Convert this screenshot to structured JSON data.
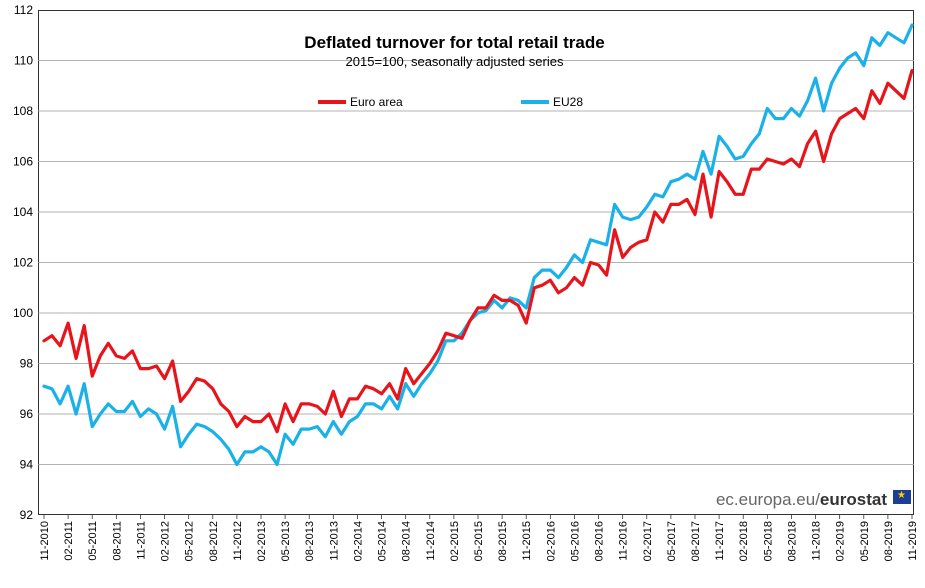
{
  "chart_data": {
    "type": "line",
    "title": "Deflated turnover for total retail trade",
    "subtitle": "2015=100, seasonally adjusted series",
    "ylim": [
      92,
      112
    ],
    "yticks": [
      92,
      94,
      96,
      98,
      100,
      102,
      104,
      106,
      108,
      110,
      112
    ],
    "xtick_labels": [
      "11-2010",
      "02-2011",
      "05-2011",
      "08-2011",
      "11-2011",
      "02-2012",
      "05-2012",
      "08-2012",
      "11-2012",
      "02-2013",
      "05-2013",
      "08-2013",
      "11-2013",
      "02-2014",
      "05-2014",
      "08-2014",
      "11-2014",
      "02-2015",
      "05-2015",
      "08-2015",
      "11-2015",
      "02-2016",
      "05-2016",
      "08-2016",
      "11-2016",
      "02-2017",
      "05-2017",
      "08-2017",
      "11-2017",
      "02-2018",
      "05-2018",
      "08-2018",
      "11-2018",
      "02-2019",
      "05-2019",
      "08-2019",
      "11-2019"
    ],
    "grid": true,
    "legend_position": "top",
    "series": [
      {
        "name": "Euro area",
        "color": "#e8141b",
        "values": [
          98.9,
          99.1,
          98.7,
          99.6,
          98.2,
          99.5,
          97.5,
          98.3,
          98.8,
          98.3,
          98.2,
          98.5,
          97.8,
          97.8,
          97.9,
          97.4,
          98.1,
          96.5,
          96.9,
          97.4,
          97.3,
          97.0,
          96.4,
          96.1,
          95.5,
          95.9,
          95.7,
          95.7,
          96.0,
          95.3,
          96.4,
          95.7,
          96.4,
          96.4,
          96.3,
          96.0,
          96.9,
          95.9,
          96.6,
          96.6,
          97.1,
          97.0,
          96.8,
          97.2,
          96.6,
          97.8,
          97.2,
          97.6,
          98.0,
          98.5,
          99.2,
          99.1,
          99.0,
          99.7,
          100.2,
          100.2,
          100.7,
          100.5,
          100.5,
          100.3,
          99.6,
          101.0,
          101.1,
          101.3,
          100.8,
          101.0,
          101.4,
          101.1,
          102.0,
          101.9,
          101.5,
          103.3,
          102.2,
          102.6,
          102.8,
          102.9,
          104.0,
          103.6,
          104.3,
          104.3,
          104.5,
          103.9,
          105.5,
          103.8,
          105.6,
          105.2,
          104.7,
          104.7,
          105.7,
          105.7,
          106.1,
          106.0,
          105.9,
          106.1,
          105.8,
          106.7,
          107.2,
          106.0,
          107.1,
          107.7,
          107.9,
          108.1,
          107.7,
          108.8,
          108.3,
          109.1,
          108.8,
          108.5,
          109.6
        ]
      },
      {
        "name": "EU28",
        "color": "#1ab0e8",
        "values": [
          97.1,
          97.0,
          96.4,
          97.1,
          96.0,
          97.2,
          95.5,
          96.0,
          96.4,
          96.1,
          96.1,
          96.5,
          95.9,
          96.2,
          96.0,
          95.4,
          96.3,
          94.7,
          95.2,
          95.6,
          95.5,
          95.3,
          95.0,
          94.6,
          94.0,
          94.5,
          94.5,
          94.7,
          94.5,
          94.0,
          95.2,
          94.8,
          95.4,
          95.4,
          95.5,
          95.1,
          95.7,
          95.2,
          95.7,
          95.9,
          96.4,
          96.4,
          96.2,
          96.7,
          96.2,
          97.2,
          96.7,
          97.2,
          97.6,
          98.1,
          98.9,
          98.9,
          99.2,
          99.7,
          100.0,
          100.1,
          100.5,
          100.2,
          100.6,
          100.5,
          100.2,
          101.4,
          101.7,
          101.7,
          101.4,
          101.8,
          102.3,
          102.0,
          102.9,
          102.8,
          102.7,
          104.3,
          103.8,
          103.7,
          103.8,
          104.2,
          104.7,
          104.6,
          105.2,
          105.3,
          105.5,
          105.3,
          106.4,
          105.5,
          107.0,
          106.6,
          106.1,
          106.2,
          106.7,
          107.1,
          108.1,
          107.7,
          107.7,
          108.1,
          107.8,
          108.4,
          109.3,
          108.0,
          109.1,
          109.7,
          110.1,
          110.3,
          109.8,
          110.9,
          110.6,
          111.1,
          110.9,
          110.7,
          111.4
        ]
      }
    ]
  },
  "source_brand": {
    "domain": "ec.europa.eu/",
    "name": "eurostat"
  }
}
